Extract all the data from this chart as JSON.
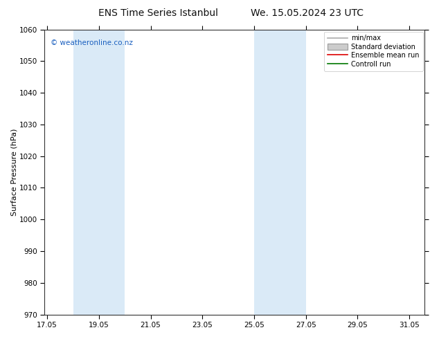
{
  "title_left": "ENS Time Series Istanbul",
  "title_right": "We. 15.05.2024 23 UTC",
  "ylabel": "Surface Pressure (hPa)",
  "ylim": [
    970,
    1060
  ],
  "yticks": [
    970,
    980,
    990,
    1000,
    1010,
    1020,
    1030,
    1040,
    1050,
    1060
  ],
  "xlim": [
    16.9,
    31.6
  ],
  "xtick_labels": [
    "17.05",
    "19.05",
    "21.05",
    "23.05",
    "25.05",
    "27.05",
    "29.05",
    "31.05"
  ],
  "xtick_positions": [
    17.0,
    19.0,
    21.0,
    23.0,
    25.0,
    27.0,
    29.0,
    31.0
  ],
  "shaded_bands": [
    {
      "x_start": 18.0,
      "x_end": 20.0
    },
    {
      "x_start": 25.0,
      "x_end": 27.0
    }
  ],
  "band_color": "#daeaf7",
  "watermark_text": "© weatheronline.co.nz",
  "watermark_color": "#1a5fbf",
  "legend_items": [
    {
      "label": "min/max",
      "color": "#aaaaaa",
      "lw": 1.2,
      "type": "line"
    },
    {
      "label": "Standard deviation",
      "color": "#cccccc",
      "edgecolor": "#999999",
      "type": "patch"
    },
    {
      "label": "Ensemble mean run",
      "color": "#dd0000",
      "lw": 1.2,
      "type": "line"
    },
    {
      "label": "Controll run",
      "color": "#007700",
      "lw": 1.2,
      "type": "line"
    }
  ],
  "bg_color": "#ffffff",
  "title_fontsize": 10,
  "ylabel_fontsize": 8,
  "tick_fontsize": 7.5,
  "watermark_fontsize": 7.5,
  "legend_fontsize": 7
}
